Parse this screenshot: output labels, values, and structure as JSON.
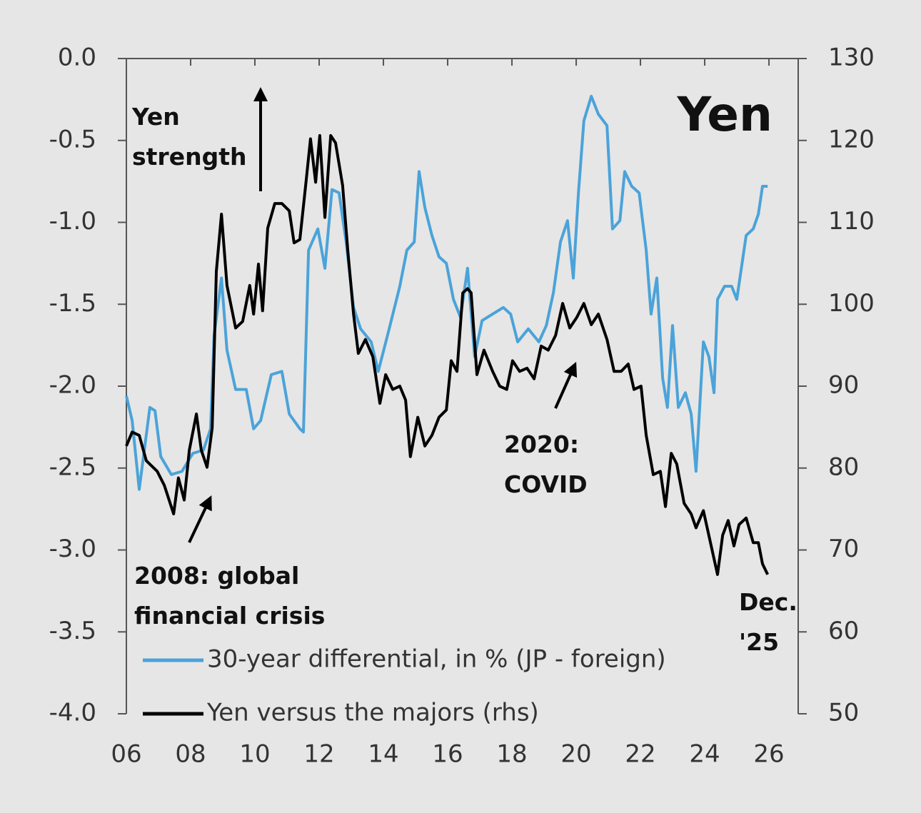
{
  "chart_data": {
    "type": "line",
    "title": "Yen",
    "annotations": [
      {
        "lines": [
          "Yen",
          "strength"
        ]
      },
      {
        "lines": [
          "2008: global",
          "financial crisis"
        ]
      },
      {
        "lines": [
          "2020:",
          "COVID"
        ]
      },
      {
        "lines": [
          "Dec.",
          "'25"
        ]
      }
    ],
    "xlim": [
      2006,
      2026.91
    ],
    "xticks": [
      {
        "value": 2006,
        "label": "06"
      },
      {
        "value": 2008,
        "label": "08"
      },
      {
        "value": 2010,
        "label": "10"
      },
      {
        "value": 2012,
        "label": "12"
      },
      {
        "value": 2014,
        "label": "14"
      },
      {
        "value": 2016,
        "label": "16"
      },
      {
        "value": 2018,
        "label": "18"
      },
      {
        "value": 2020,
        "label": "20"
      },
      {
        "value": 2022,
        "label": "22"
      },
      {
        "value": 2024,
        "label": "24"
      },
      {
        "value": 2026,
        "label": "26"
      }
    ],
    "ylim": [
      -4,
      0
    ],
    "yticks": [
      {
        "value": 0,
        "label": "0.0"
      },
      -0.5,
      {
        "value": -1,
        "label": "-1.0"
      },
      -1.5,
      {
        "value": -2,
        "label": "-2.0"
      },
      -2.5,
      {
        "value": -3,
        "label": "-3.0"
      },
      -3.5,
      {
        "value": -4,
        "label": "-4.0"
      }
    ],
    "y2lim": [
      50,
      130
    ],
    "y2ticks": [
      50,
      60,
      70,
      80,
      90,
      100,
      110,
      120,
      130
    ],
    "series": [
      {
        "name": "30-year differential, in % (JP - foreign)",
        "color": "#4ba3d9",
        "x": [
          2006.0,
          2006.18,
          2006.4,
          2006.73,
          2006.89,
          2007.07,
          2007.4,
          2007.73,
          2008.07,
          2008.4,
          2008.62,
          2008.73,
          2008.96,
          2009.13,
          2009.4,
          2009.73,
          2009.96,
          2010.18,
          2010.51,
          2010.84,
          2011.07,
          2011.4,
          2011.51,
          2011.67,
          2011.96,
          2012.18,
          2012.4,
          2012.62,
          2012.84,
          2013.07,
          2013.29,
          2013.62,
          2013.84,
          2014.18,
          2014.51,
          2014.73,
          2014.96,
          2015.11,
          2015.29,
          2015.51,
          2015.73,
          2015.96,
          2016.18,
          2016.4,
          2016.62,
          2016.84,
          2017.07,
          2017.4,
          2017.73,
          2017.96,
          2018.18,
          2018.51,
          2018.84,
          2019.07,
          2019.29,
          2019.51,
          2019.73,
          2019.91,
          2020.07,
          2020.24,
          2020.47,
          2020.69,
          2020.96,
          2021.13,
          2021.36,
          2021.51,
          2021.73,
          2021.96,
          2022.18,
          2022.33,
          2022.51,
          2022.69,
          2022.84,
          2023.0,
          2023.18,
          2023.4,
          2023.58,
          2023.73,
          2023.96,
          2024.13,
          2024.29,
          2024.4,
          2024.62,
          2024.84,
          2025.0,
          2025.29,
          2025.51,
          2025.67,
          2025.8,
          2025.96
        ],
        "values": [
          -2.06,
          -2.21,
          -2.63,
          -2.13,
          -2.15,
          -2.43,
          -2.54,
          -2.52,
          -2.41,
          -2.39,
          -2.26,
          -1.69,
          -1.34,
          -1.78,
          -2.02,
          -2.02,
          -2.26,
          -2.21,
          -1.93,
          -1.91,
          -2.17,
          -2.26,
          -2.28,
          -1.17,
          -1.04,
          -1.28,
          -0.8,
          -0.82,
          -1.12,
          -1.52,
          -1.65,
          -1.73,
          -1.91,
          -1.65,
          -1.39,
          -1.17,
          -1.12,
          -0.69,
          -0.91,
          -1.08,
          -1.21,
          -1.25,
          -1.47,
          -1.58,
          -1.28,
          -1.82,
          -1.6,
          -1.56,
          -1.52,
          -1.56,
          -1.73,
          -1.65,
          -1.73,
          -1.63,
          -1.43,
          -1.12,
          -0.99,
          -1.34,
          -0.82,
          -0.38,
          -0.23,
          -0.34,
          -0.41,
          -1.04,
          -0.99,
          -0.69,
          -0.78,
          -0.82,
          -1.17,
          -1.56,
          -1.34,
          -1.95,
          -2.13,
          -1.63,
          -2.13,
          -2.04,
          -2.17,
          -2.52,
          -1.73,
          -1.82,
          -2.04,
          -1.47,
          -1.39,
          -1.39,
          -1.47,
          -1.08,
          -1.04,
          -0.95,
          -0.78,
          -0.78
        ]
      },
      {
        "name": "Yen versus the majors (rhs)",
        "color": "#000000",
        "axis": "y2",
        "x": [
          2006.0,
          2006.18,
          2006.4,
          2006.62,
          2006.96,
          2007.18,
          2007.47,
          2007.62,
          2007.8,
          2007.96,
          2008.18,
          2008.33,
          2008.51,
          2008.67,
          2008.8,
          2008.96,
          2009.13,
          2009.4,
          2009.62,
          2009.84,
          2009.96,
          2010.11,
          2010.24,
          2010.4,
          2010.62,
          2010.84,
          2011.07,
          2011.22,
          2011.4,
          2011.58,
          2011.73,
          2011.89,
          2012.02,
          2012.18,
          2012.36,
          2012.51,
          2012.73,
          2012.89,
          2013.07,
          2013.22,
          2013.44,
          2013.67,
          2013.89,
          2014.07,
          2014.29,
          2014.51,
          2014.69,
          2014.84,
          2015.07,
          2015.29,
          2015.51,
          2015.73,
          2015.96,
          2016.11,
          2016.29,
          2016.47,
          2016.62,
          2016.73,
          2016.91,
          2017.13,
          2017.4,
          2017.62,
          2017.84,
          2018.02,
          2018.24,
          2018.47,
          2018.69,
          2018.91,
          2019.13,
          2019.36,
          2019.58,
          2019.8,
          2020.02,
          2020.24,
          2020.47,
          2020.69,
          2020.96,
          2021.18,
          2021.4,
          2021.62,
          2021.8,
          2022.02,
          2022.18,
          2022.4,
          2022.62,
          2022.78,
          2022.96,
          2023.13,
          2023.36,
          2023.58,
          2023.73,
          2023.96,
          2024.18,
          2024.4,
          2024.56,
          2024.73,
          2024.91,
          2025.07,
          2025.29,
          2025.51,
          2025.67,
          2025.8,
          2025.96
        ],
        "values": [
          82.7,
          84.4,
          84.0,
          80.9,
          79.6,
          77.9,
          74.4,
          78.8,
          76.1,
          82.2,
          86.6,
          82.2,
          80.1,
          84.9,
          104.0,
          111.0,
          102.3,
          97.1,
          97.9,
          102.3,
          98.8,
          104.9,
          99.2,
          109.3,
          112.3,
          112.3,
          111.4,
          107.5,
          107.9,
          114.5,
          120.2,
          114.9,
          120.6,
          110.6,
          120.6,
          119.7,
          114.5,
          106.6,
          98.8,
          94.0,
          95.7,
          93.6,
          87.9,
          91.4,
          89.6,
          90.0,
          88.3,
          81.4,
          86.2,
          82.7,
          84.0,
          86.2,
          87.1,
          93.1,
          91.8,
          101.4,
          101.9,
          101.4,
          91.4,
          94.4,
          91.8,
          90.0,
          89.6,
          93.1,
          91.8,
          92.2,
          90.9,
          94.9,
          94.4,
          96.2,
          100.1,
          97.1,
          98.4,
          100.1,
          97.5,
          98.8,
          95.7,
          91.8,
          91.8,
          92.7,
          89.6,
          90.0,
          84.0,
          79.2,
          79.6,
          75.3,
          81.8,
          80.5,
          75.7,
          74.4,
          72.7,
          74.8,
          70.9,
          67.0,
          71.8,
          73.6,
          70.5,
          73.1,
          73.9,
          70.9,
          70.9,
          68.3,
          67.0
        ]
      }
    ]
  }
}
